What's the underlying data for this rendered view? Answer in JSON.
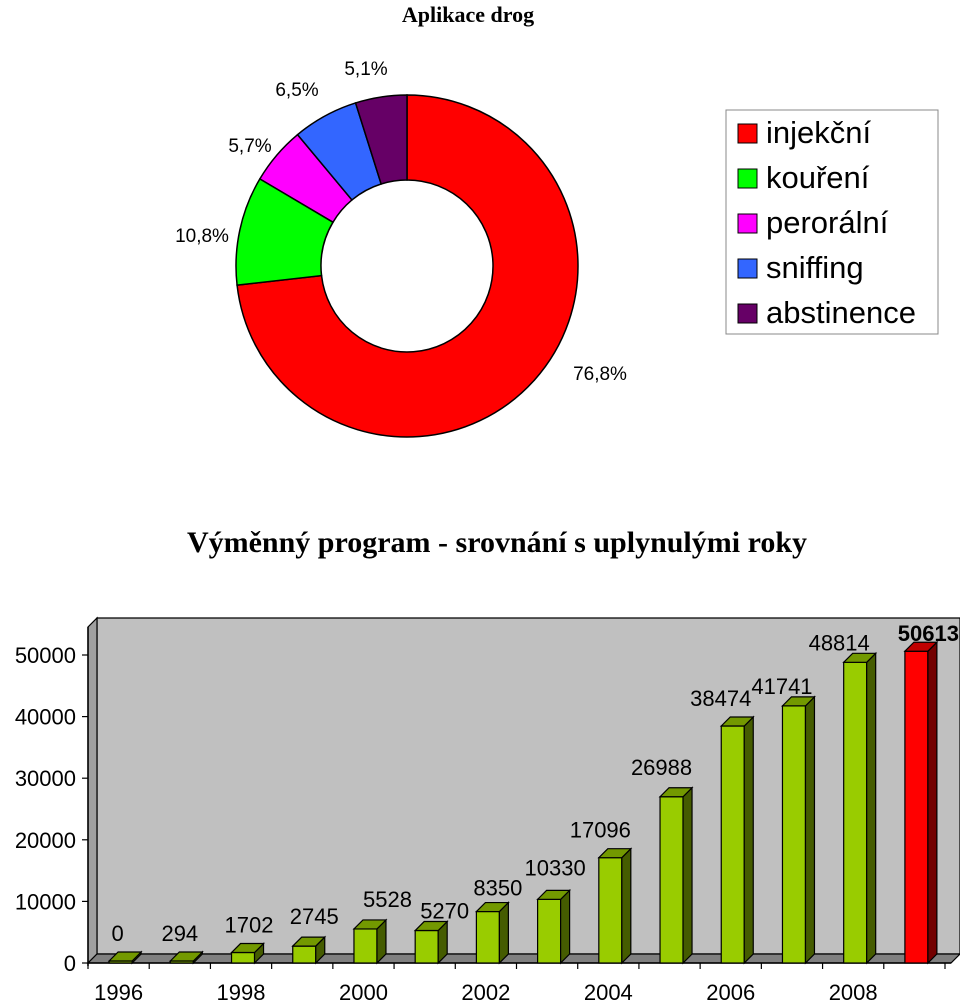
{
  "chart_data": [
    {
      "type": "pie",
      "style": "donut",
      "title": "Aplikace drog",
      "labels": [
        "injekční",
        "kouření",
        "perorální",
        "sniffing",
        "abstinence"
      ],
      "values": [
        76.8,
        10.8,
        5.7,
        6.5,
        5.1
      ],
      "value_labels": [
        "76,8%",
        "10,8%",
        "5,7%",
        "6,5%",
        "5,1%"
      ],
      "colors": [
        "#ff0000",
        "#00ff00",
        "#ff00ff",
        "#3366ff",
        "#660066"
      ],
      "legend": "right"
    },
    {
      "type": "bar",
      "style": "3d",
      "title": "Výměnný program - srovnání s uplynulými roky",
      "categories": [
        "1996",
        "1997",
        "1998",
        "1999",
        "2000",
        "2001",
        "2002",
        "2003",
        "2004",
        "2005",
        "2006",
        "2007",
        "2008",
        "2009"
      ],
      "x_tick_labels": [
        "1996",
        "1998",
        "2000",
        "2002",
        "2004",
        "2006",
        "2008"
      ],
      "values": [
        0,
        294,
        1702,
        2745,
        5528,
        5270,
        8350,
        10330,
        17096,
        26988,
        38474,
        41741,
        48814,
        50613
      ],
      "highlight_index": 13,
      "bar_color": "#99cc00",
      "highlight_color": "#ff0000",
      "ylim": [
        0,
        50000
      ],
      "yticks": [
        0,
        10000,
        20000,
        30000,
        40000,
        50000
      ],
      "wall_color": "#c0c0c0",
      "xlabel": "",
      "ylabel": ""
    }
  ]
}
